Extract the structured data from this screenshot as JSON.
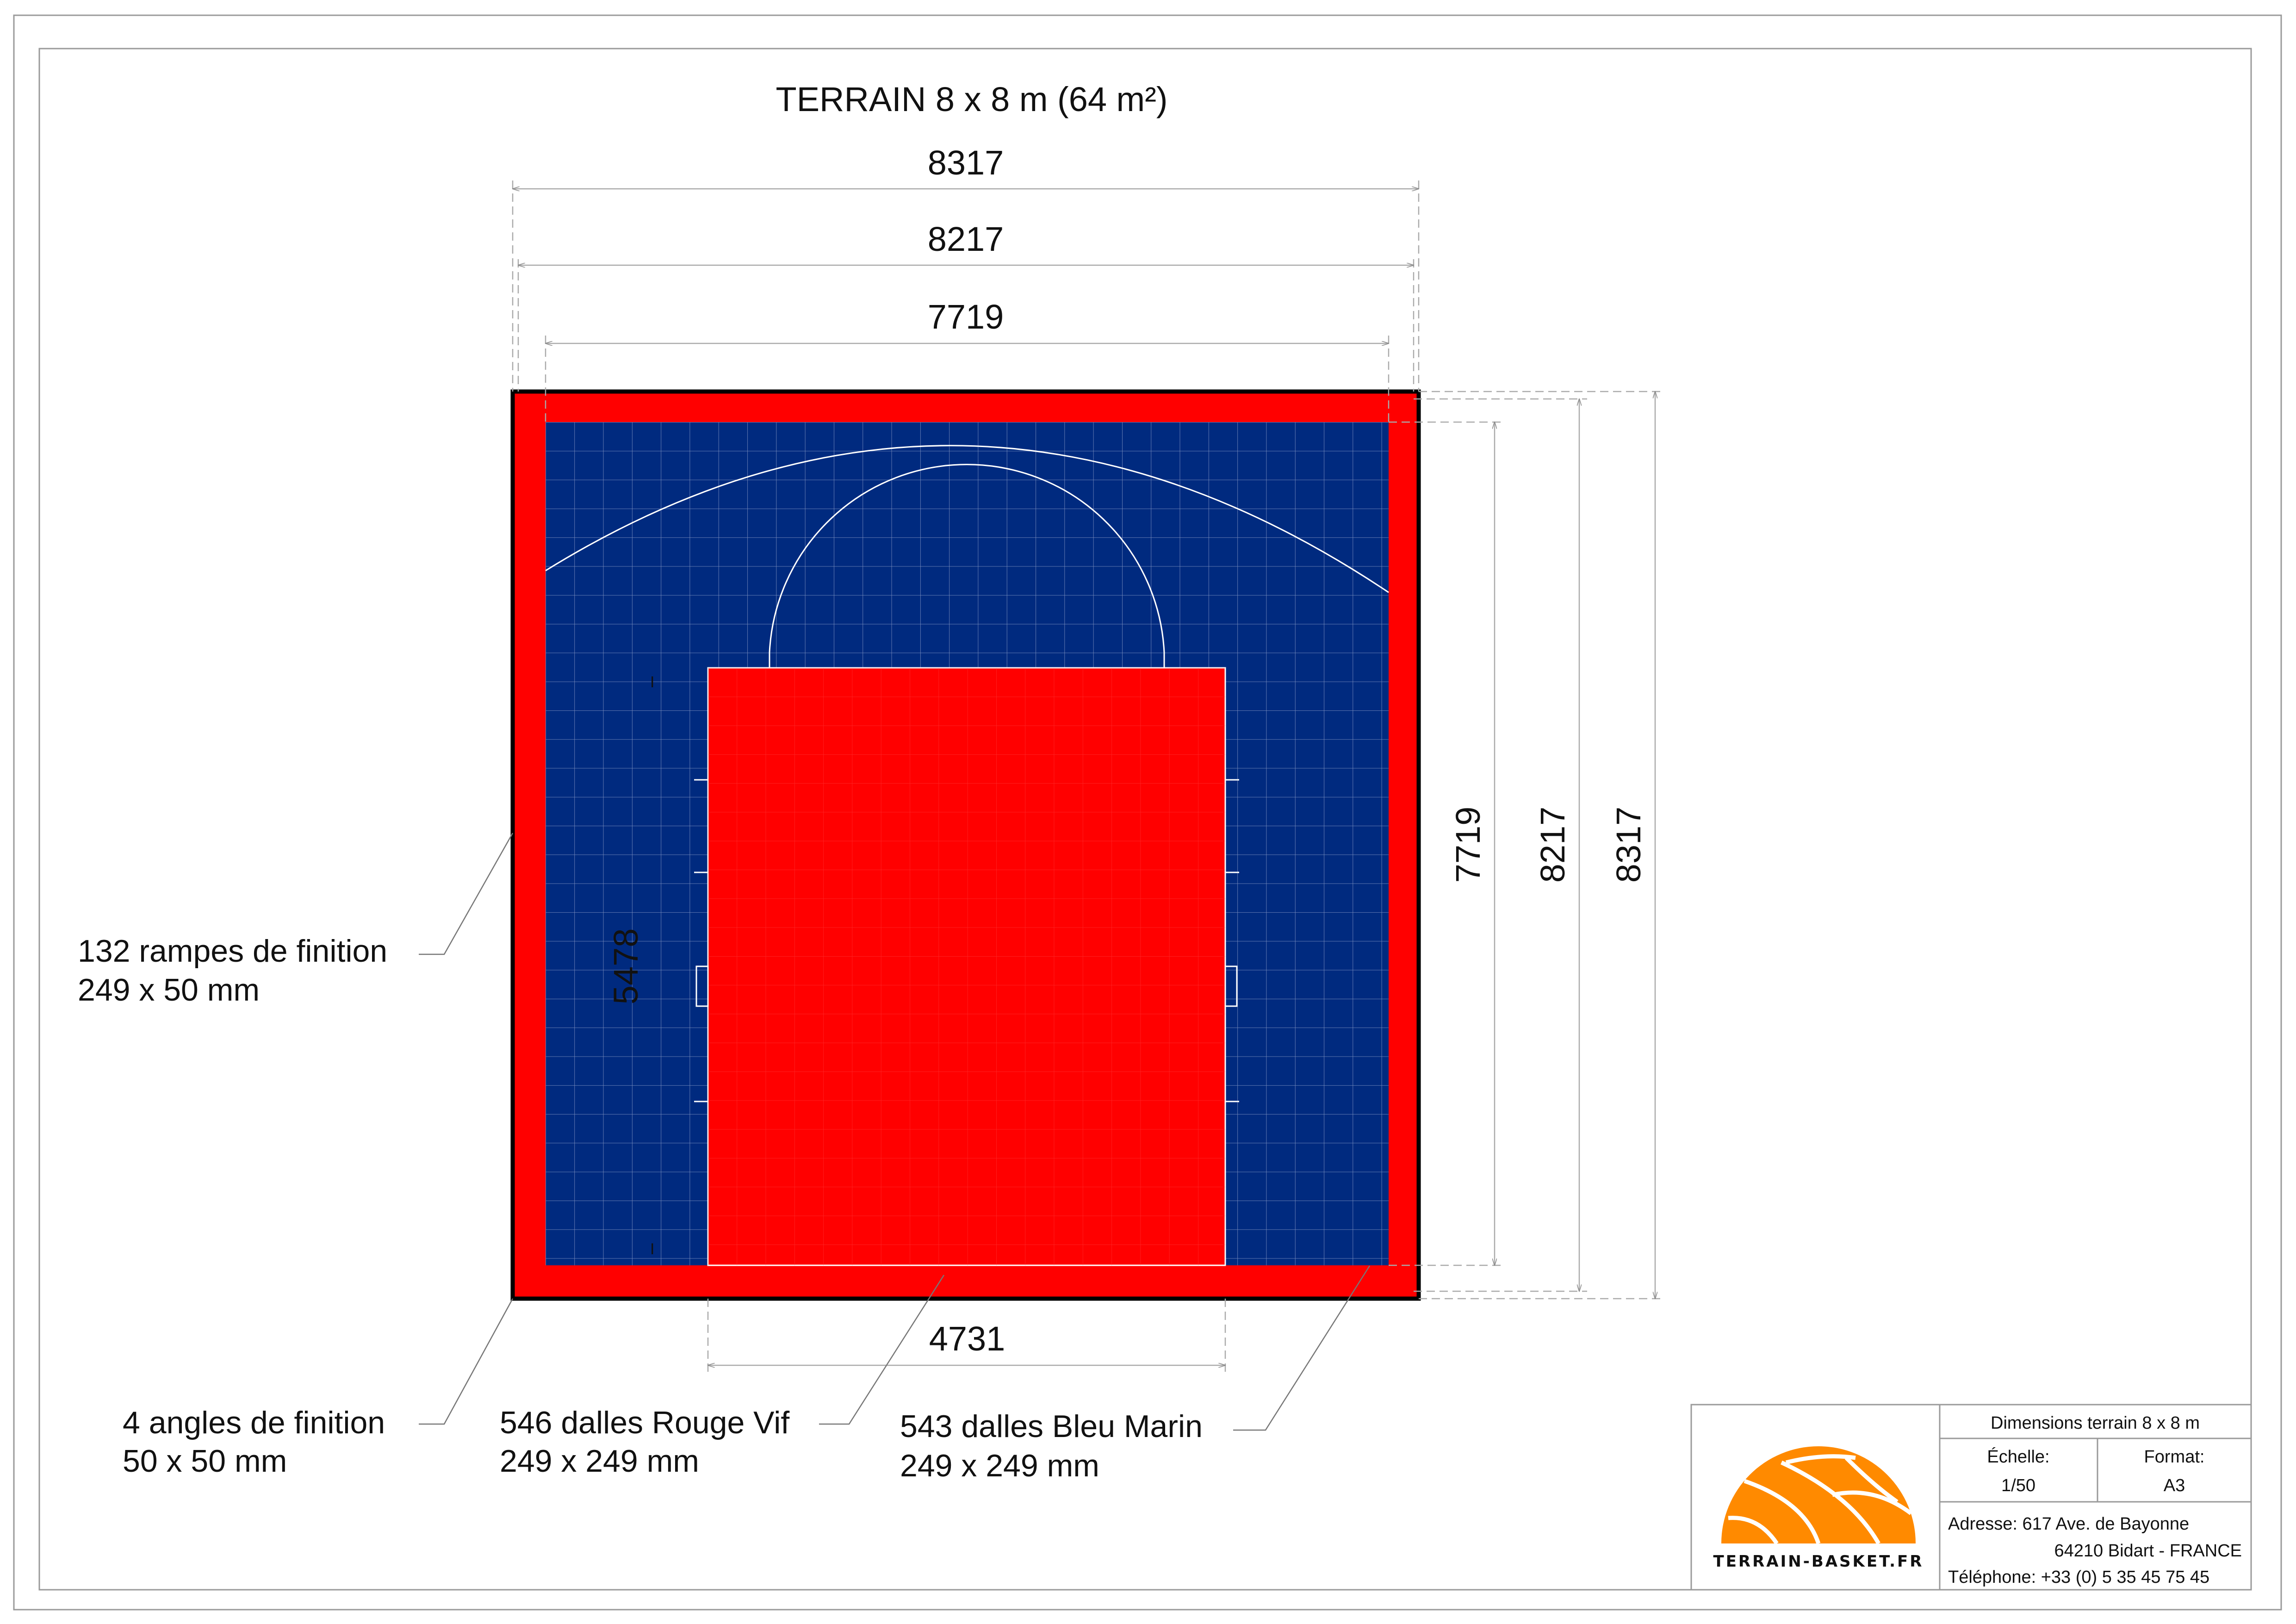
{
  "title": "TERRAIN 8 x 8 m (64 m²)",
  "colors": {
    "border": "#ff0000",
    "court": "#002a7f",
    "key": "#ff0000",
    "frame": "#000000",
    "lines": "#ffffff",
    "logo": "#ff8a00"
  },
  "dimensions": {
    "top_outer": "8317",
    "top_mid": "8217",
    "top_inner": "7719",
    "right_inner": "7719",
    "right_mid": "8217",
    "right_outer": "8317",
    "key_width": "4731",
    "key_height": "5478"
  },
  "labels": {
    "ramps_line1": "132 rampes de finition",
    "ramps_line2": "249 x 50 mm",
    "corners_line1": "4 angles de finition",
    "corners_line2": "50 x 50 mm",
    "red_tiles_line1": "546 dalles Rouge Vif",
    "red_tiles_line2": "249 x 249 mm",
    "blue_tiles_line1": "543 dalles Bleu Marin",
    "blue_tiles_line2": "249 x 249 mm"
  },
  "title_block": {
    "heading": "Dimensions terrain 8 x 8 m",
    "scale_label": "Échelle:",
    "scale_value": "1/50",
    "format_label": "Format:",
    "format_value": "A3",
    "address_line1": "Adresse: 617 Ave. de Bayonne",
    "address_line2": "64210 Bidart - FRANCE",
    "phone": "Téléphone: +33 (0) 5 35 45 75 45",
    "logo_text": "TERRAIN-BASKET.FR",
    "logo_icon": "basketball-icon"
  }
}
